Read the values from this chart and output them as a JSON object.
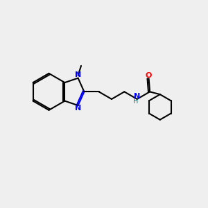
{
  "background_color": "#efefef",
  "bond_color": "#000000",
  "nitrogen_color": "#0000ff",
  "oxygen_color": "#ff0000",
  "nh_color": "#008080",
  "figsize": [
    3.0,
    3.0
  ],
  "dpi": 100,
  "bond_lw": 1.5,
  "xlim": [
    0,
    10
  ],
  "ylim": [
    0,
    10
  ]
}
